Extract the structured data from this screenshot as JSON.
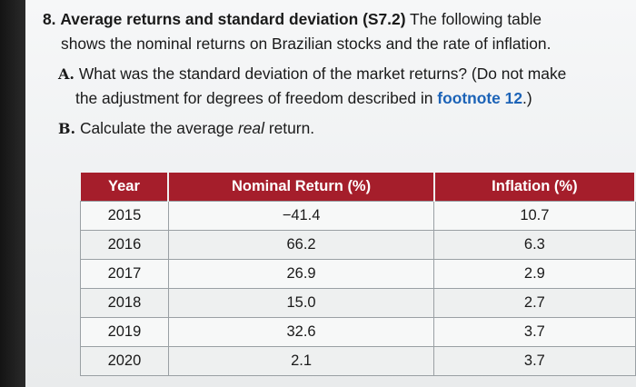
{
  "problem": {
    "number": "8.",
    "title": "Average returns and standard deviation (S7.2)",
    "intro_1": "The following table",
    "intro_2": "shows the nominal returns on Brazilian stocks and the rate of inflation.",
    "part_a_label": "A.",
    "part_a_text_1": "What was the standard deviation of the market returns? (Do not make",
    "part_a_text_2a": "the adjustment for degrees of freedom described in",
    "part_a_link": "footnote 12",
    "part_a_text_2b": ".)",
    "part_b_label": "B.",
    "part_b_text_a": "Calculate the average",
    "part_b_text_em": "real",
    "part_b_text_b": "return."
  },
  "table": {
    "headers": [
      "Year",
      "Nominal Return (%)",
      "Inflation (%)"
    ],
    "rows": [
      [
        "2015",
        "−41.4",
        "10.7"
      ],
      [
        "2016",
        "66.2",
        "6.3"
      ],
      [
        "2017",
        "26.9",
        "2.9"
      ],
      [
        "2018",
        "15.0",
        "2.7"
      ],
      [
        "2019",
        "32.6",
        "3.7"
      ],
      [
        "2020",
        "2.1",
        "3.7"
      ]
    ]
  },
  "colors": {
    "header_bg": "#a51e2b",
    "link": "#1c63b7"
  }
}
